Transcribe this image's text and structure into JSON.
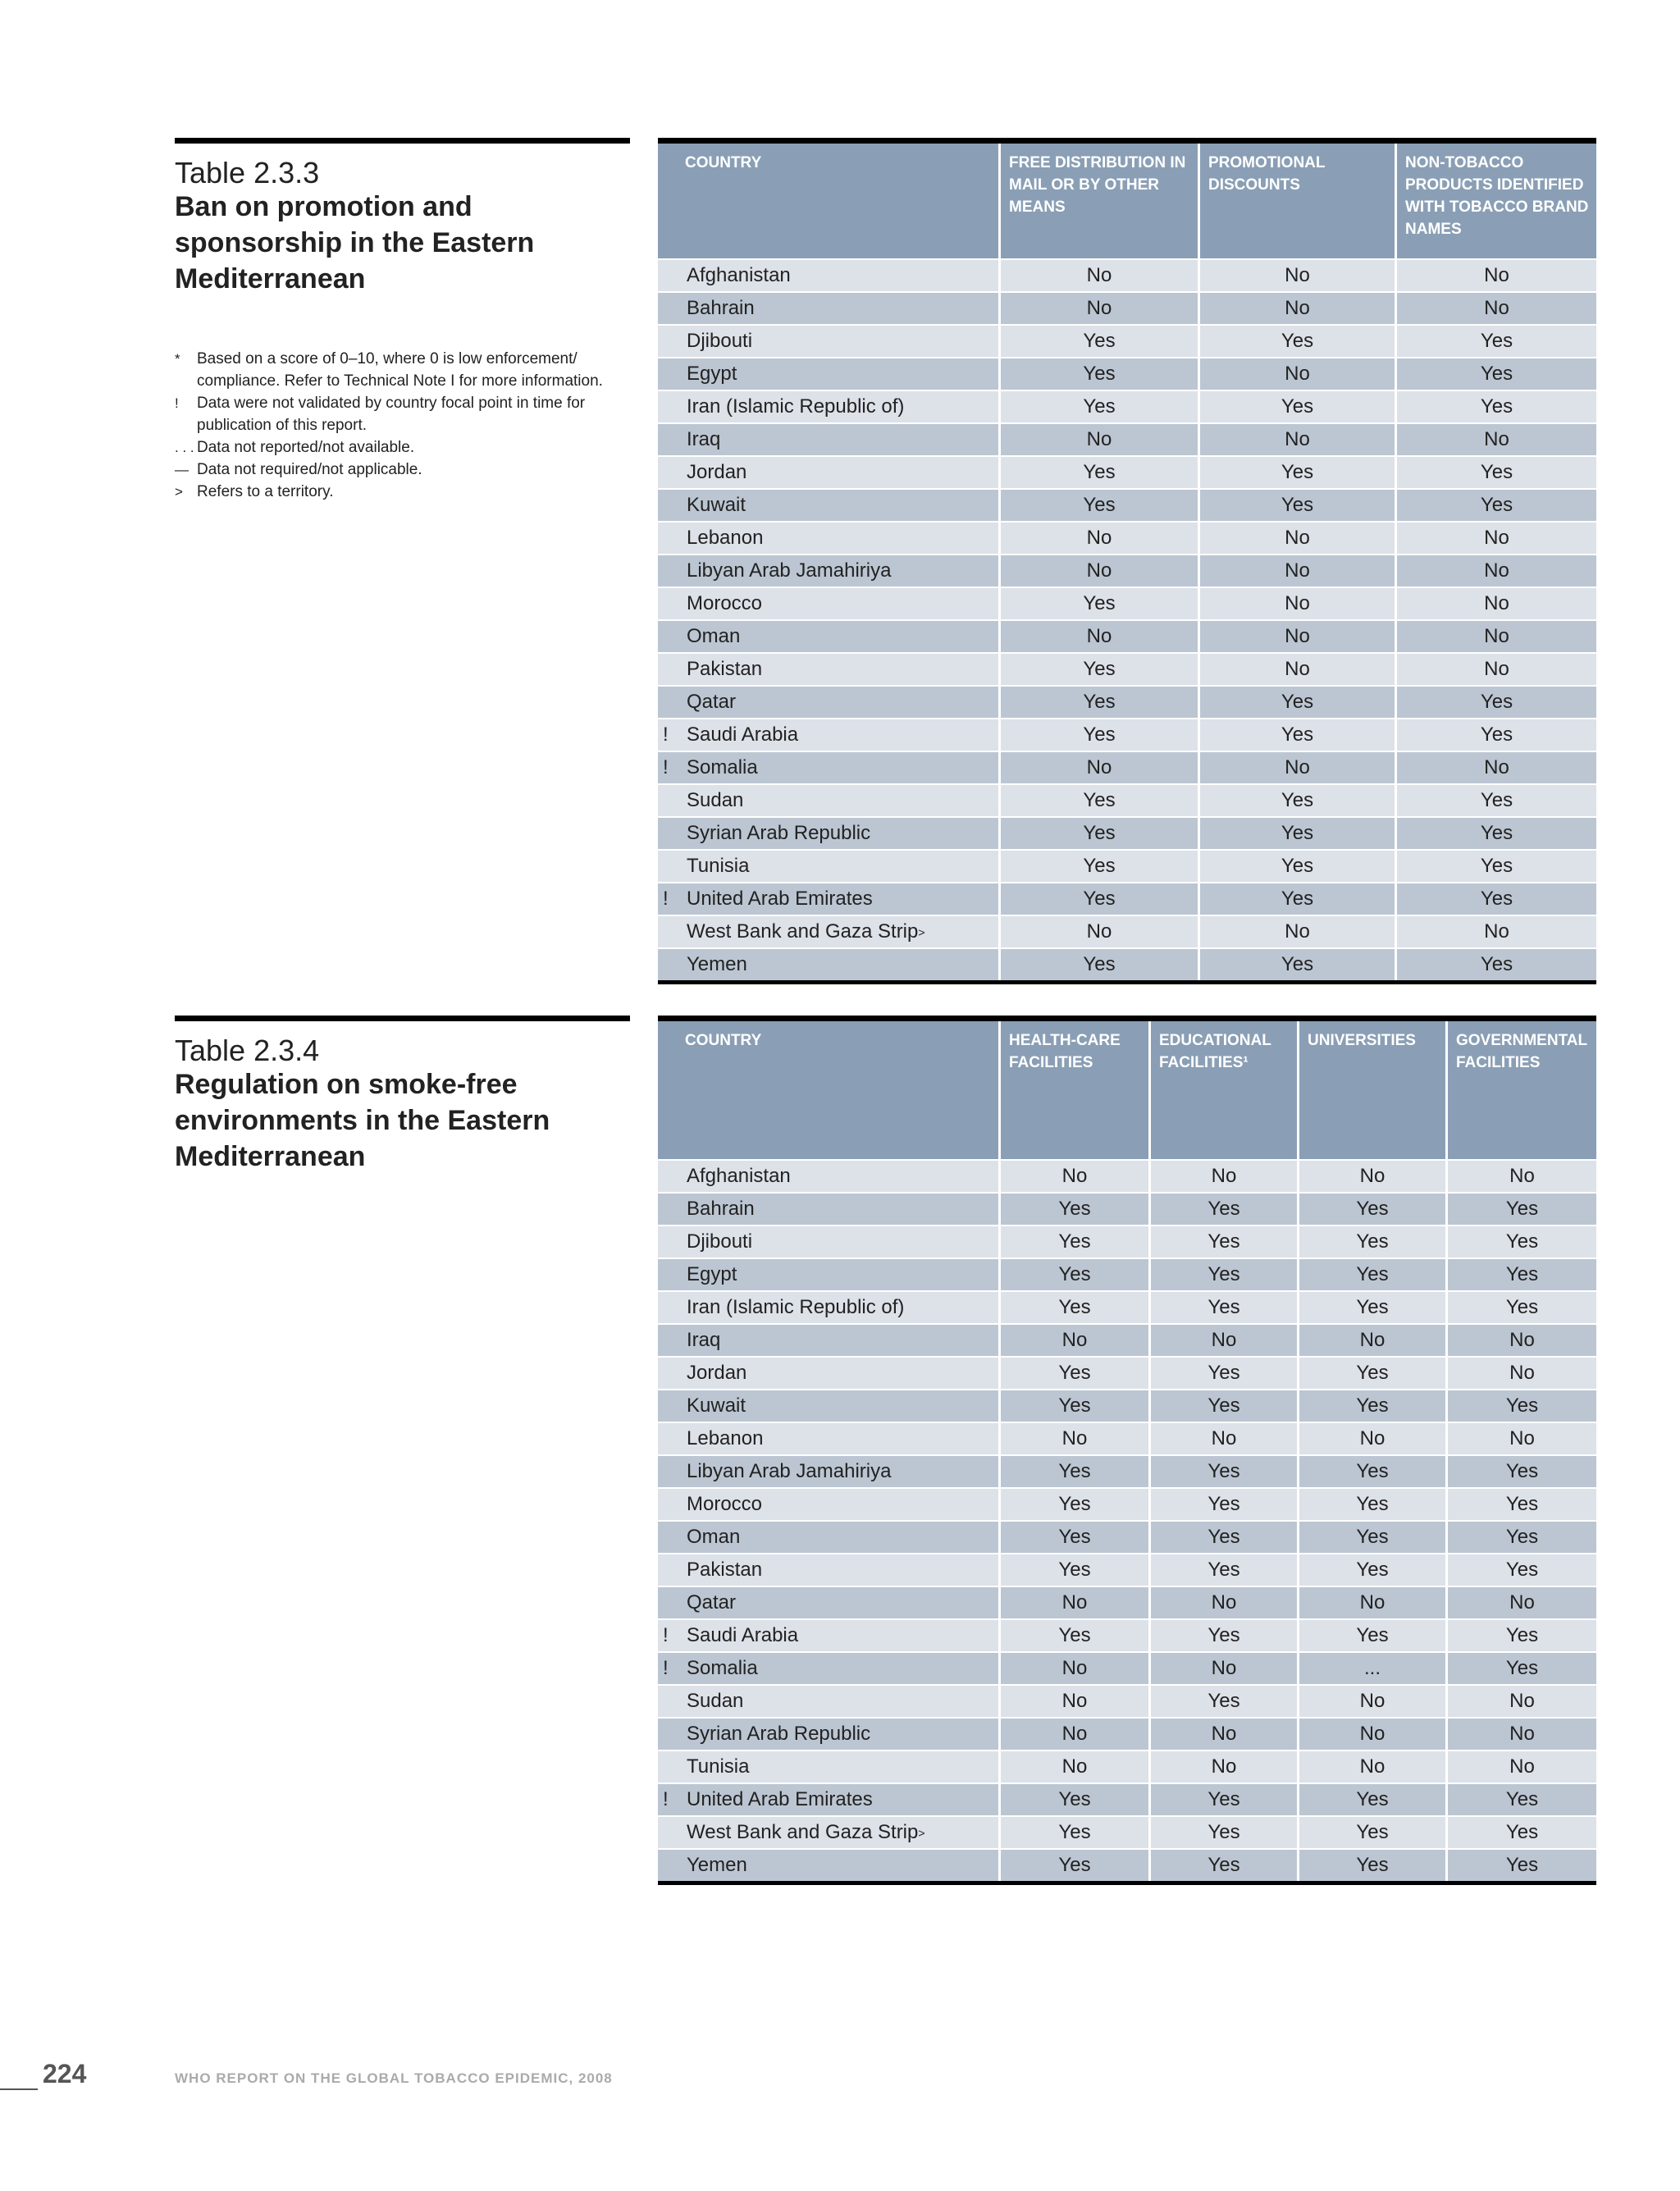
{
  "tables": [
    {
      "label": "Table 2.3.3",
      "title": "Ban on promotion and sponsorship in the Eastern Mediterranean",
      "columns": [
        "COUNTRY",
        "FREE DISTRIBUTION IN MAIL OR BY OTHER MEANS",
        "PROMOTIONAL DISCOUNTS",
        "NON-TOBACCO PRODUCTS IDENTIFIED WITH TOBACCO BRAND NAMES"
      ],
      "rows": [
        {
          "country": "Afghanistan",
          "values": [
            "No",
            "No",
            "No"
          ]
        },
        {
          "country": "Bahrain",
          "values": [
            "No",
            "No",
            "No"
          ]
        },
        {
          "country": "Djibouti",
          "values": [
            "Yes",
            "Yes",
            "Yes"
          ]
        },
        {
          "country": "Egypt",
          "values": [
            "Yes",
            "No",
            "Yes"
          ]
        },
        {
          "country": "Iran (Islamic Republic of)",
          "values": [
            "Yes",
            "Yes",
            "Yes"
          ]
        },
        {
          "country": "Iraq",
          "values": [
            "No",
            "No",
            "No"
          ]
        },
        {
          "country": "Jordan",
          "values": [
            "Yes",
            "Yes",
            "Yes"
          ]
        },
        {
          "country": "Kuwait",
          "values": [
            "Yes",
            "Yes",
            "Yes"
          ]
        },
        {
          "country": "Lebanon",
          "values": [
            "No",
            "No",
            "No"
          ]
        },
        {
          "country": "Libyan Arab Jamahiriya",
          "values": [
            "No",
            "No",
            "No"
          ]
        },
        {
          "country": "Morocco",
          "values": [
            "Yes",
            "No",
            "No"
          ]
        },
        {
          "country": "Oman",
          "values": [
            "No",
            "No",
            "No"
          ]
        },
        {
          "country": "Pakistan",
          "values": [
            "Yes",
            "No",
            "No"
          ]
        },
        {
          "country": "Qatar",
          "values": [
            "Yes",
            "Yes",
            "Yes"
          ]
        },
        {
          "flag": "!",
          "country": "Saudi Arabia",
          "values": [
            "Yes",
            "Yes",
            "Yes"
          ]
        },
        {
          "flag": "!",
          "country": "Somalia",
          "values": [
            "No",
            "No",
            "No"
          ]
        },
        {
          "country": "Sudan",
          "values": [
            "Yes",
            "Yes",
            "Yes"
          ]
        },
        {
          "country": "Syrian Arab Republic",
          "values": [
            "Yes",
            "Yes",
            "Yes"
          ]
        },
        {
          "country": "Tunisia",
          "values": [
            "Yes",
            "Yes",
            "Yes"
          ]
        },
        {
          "flag": "!",
          "country": "United Arab Emirates",
          "values": [
            "Yes",
            "Yes",
            "Yes"
          ]
        },
        {
          "country": "West Bank and Gaza Strip",
          "mark": "˃",
          "values": [
            "No",
            "No",
            "No"
          ]
        },
        {
          "country": "Yemen",
          "values": [
            "Yes",
            "Yes",
            "Yes"
          ]
        }
      ]
    },
    {
      "label": "Table 2.3.4",
      "title": "Regulation on smoke-free environments in the Eastern Mediterranean",
      "columns": [
        "COUNTRY",
        "HEALTH-CARE FACILITIES",
        "EDUCATIONAL FACILITIES¹",
        "UNIVERSITIES",
        "GOVERNMENTAL FACILITIES"
      ],
      "rows": [
        {
          "country": "Afghanistan",
          "values": [
            "No",
            "No",
            "No",
            "No"
          ]
        },
        {
          "country": "Bahrain",
          "values": [
            "Yes",
            "Yes",
            "Yes",
            "Yes"
          ]
        },
        {
          "country": "Djibouti",
          "values": [
            "Yes",
            "Yes",
            "Yes",
            "Yes"
          ]
        },
        {
          "country": "Egypt",
          "values": [
            "Yes",
            "Yes",
            "Yes",
            "Yes"
          ]
        },
        {
          "country": "Iran (Islamic Republic of)",
          "values": [
            "Yes",
            "Yes",
            "Yes",
            "Yes"
          ]
        },
        {
          "country": "Iraq",
          "values": [
            "No",
            "No",
            "No",
            "No"
          ]
        },
        {
          "country": "Jordan",
          "values": [
            "Yes",
            "Yes",
            "Yes",
            "No"
          ]
        },
        {
          "country": "Kuwait",
          "values": [
            "Yes",
            "Yes",
            "Yes",
            "Yes"
          ]
        },
        {
          "country": "Lebanon",
          "values": [
            "No",
            "No",
            "No",
            "No"
          ]
        },
        {
          "country": "Libyan Arab Jamahiriya",
          "values": [
            "Yes",
            "Yes",
            "Yes",
            "Yes"
          ]
        },
        {
          "country": "Morocco",
          "values": [
            "Yes",
            "Yes",
            "Yes",
            "Yes"
          ]
        },
        {
          "country": "Oman",
          "values": [
            "Yes",
            "Yes",
            "Yes",
            "Yes"
          ]
        },
        {
          "country": "Pakistan",
          "values": [
            "Yes",
            "Yes",
            "Yes",
            "Yes"
          ]
        },
        {
          "country": "Qatar",
          "values": [
            "No",
            "No",
            "No",
            "No"
          ]
        },
        {
          "flag": "!",
          "country": "Saudi Arabia",
          "values": [
            "Yes",
            "Yes",
            "Yes",
            "Yes"
          ]
        },
        {
          "flag": "!",
          "country": "Somalia",
          "values": [
            "No",
            "No",
            "...",
            "Yes"
          ]
        },
        {
          "country": "Sudan",
          "values": [
            "No",
            "Yes",
            "No",
            "No"
          ]
        },
        {
          "country": "Syrian Arab Republic",
          "values": [
            "No",
            "No",
            "No",
            "No"
          ]
        },
        {
          "country": "Tunisia",
          "values": [
            "No",
            "No",
            "No",
            "No"
          ]
        },
        {
          "flag": "!",
          "country": "United Arab Emirates",
          "values": [
            "Yes",
            "Yes",
            "Yes",
            "Yes"
          ]
        },
        {
          "country": "West Bank and Gaza Strip",
          "mark": "˃",
          "values": [
            "Yes",
            "Yes",
            "Yes",
            "Yes"
          ]
        },
        {
          "country": "Yemen",
          "values": [
            "Yes",
            "Yes",
            "Yes",
            "Yes"
          ]
        }
      ]
    }
  ],
  "footnotes": [
    {
      "symbol": "*",
      "text": "Based on a score of 0–10, where 0 is low enforcement/ compliance. Refer to Technical Note I for more information."
    },
    {
      "symbol": "!",
      "text": "Data were not validated by country focal point in time for publication of this report."
    },
    {
      "symbol": ". . .",
      "text": "Data not reported/not available."
    },
    {
      "symbol": "—",
      "text": "Data not required/not applicable."
    },
    {
      "symbol": "˃",
      "text": "Refers to a territory."
    }
  ],
  "footer": {
    "page": "224",
    "text": "WHO REPORT ON THE GLOBAL TOBACCO EPIDEMIC, 2008"
  }
}
